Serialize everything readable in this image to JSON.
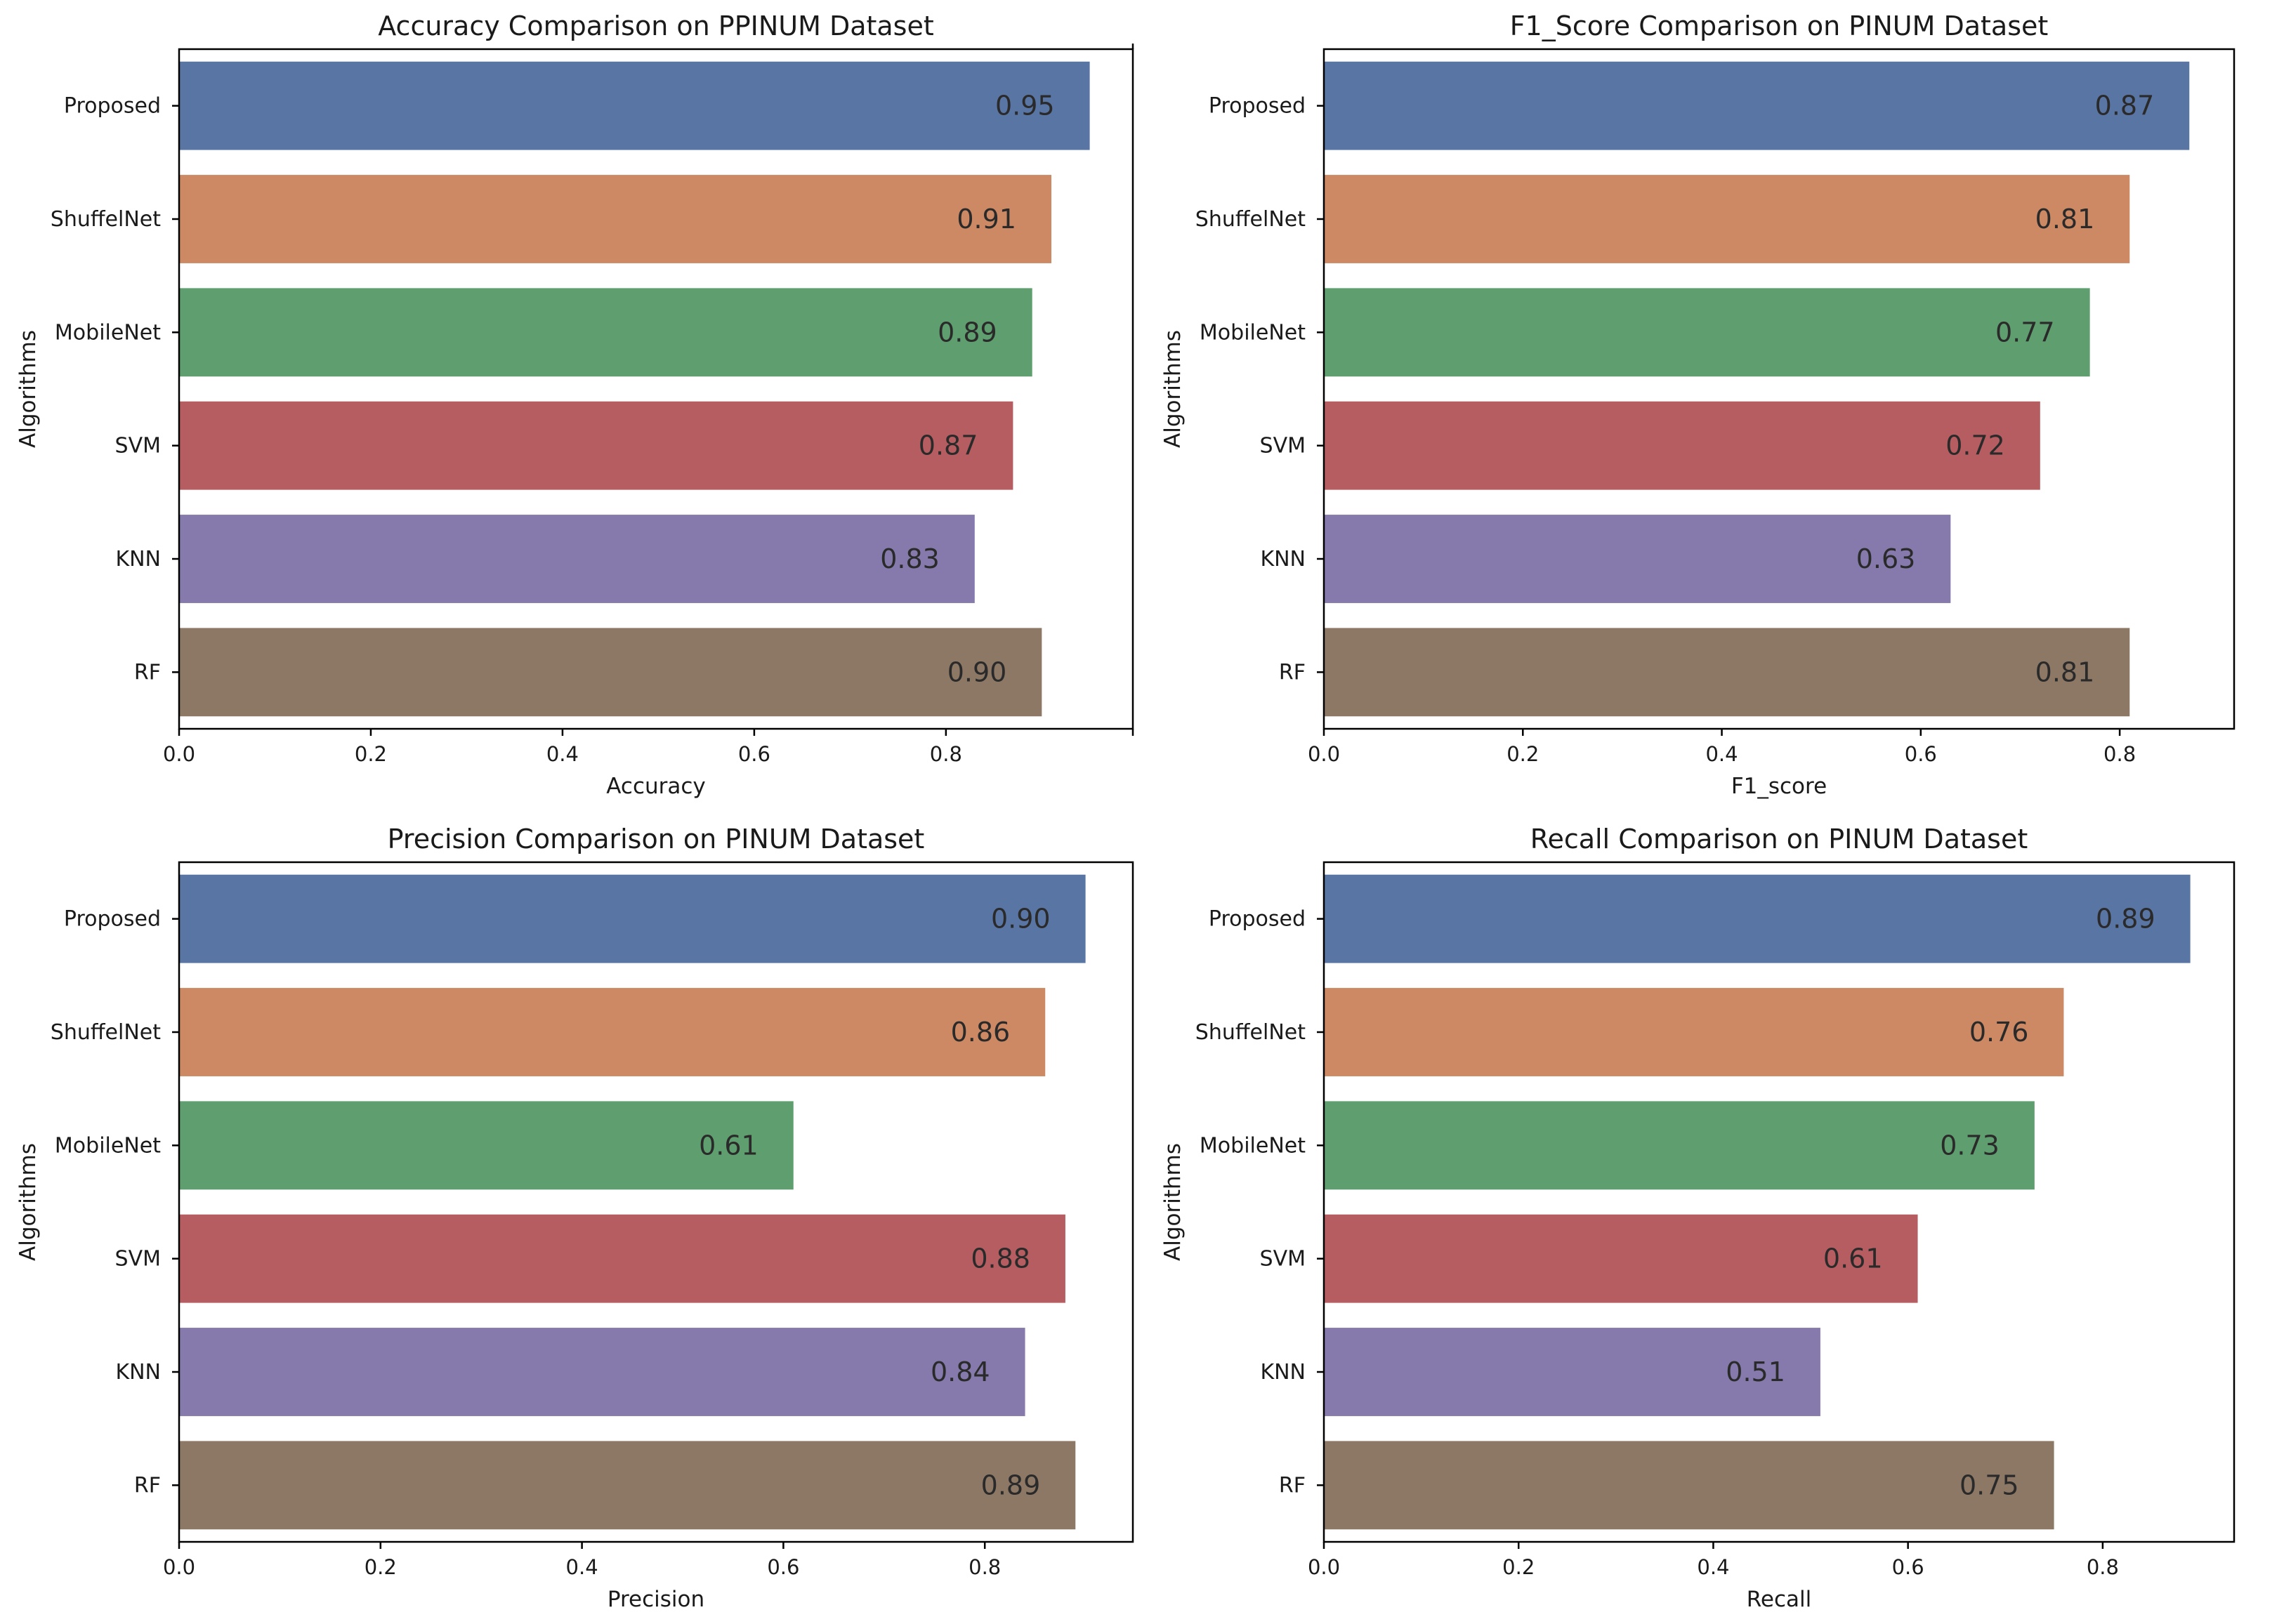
{
  "colors": {
    "Proposed": "#5975a4",
    "ShuffelNet": "#cc8963",
    "MobileNet": "#5f9e6e",
    "SVM": "#b55d60",
    "KNN": "#857aab",
    "RF": "#8d7866"
  },
  "chart_data": [
    {
      "type": "bar",
      "orientation": "horizontal",
      "title": "Accuracy Comparison on PPINUM Dataset",
      "xlabel": "Accuracy",
      "ylabel": "Algorithms",
      "categories": [
        "Proposed",
        "ShuffelNet",
        "MobileNet",
        "SVM",
        "KNN",
        "RF"
      ],
      "values": [
        0.95,
        0.91,
        0.89,
        0.87,
        0.83,
        0.9
      ],
      "value_labels": [
        "0.95",
        "0.91",
        "0.89",
        "0.87",
        "0.83",
        "0.90"
      ],
      "xlim": [
        0,
        0.995
      ],
      "xticks": [
        "0.0",
        "0.2",
        "0.4",
        "0.6",
        "0.8"
      ],
      "grid": false,
      "top_tick": true
    },
    {
      "type": "bar",
      "orientation": "horizontal",
      "title": "F1_Score Comparison on PINUM Dataset",
      "xlabel": "F1_score",
      "ylabel": "Algorithms",
      "categories": [
        "Proposed",
        "ShuffelNet",
        "MobileNet",
        "SVM",
        "KNN",
        "RF"
      ],
      "values": [
        0.87,
        0.81,
        0.77,
        0.72,
        0.63,
        0.81
      ],
      "value_labels": [
        "0.87",
        "0.81",
        "0.77",
        "0.72",
        "0.63",
        "0.81"
      ],
      "xlim": [
        0,
        0.915
      ],
      "xticks": [
        "0.0",
        "0.2",
        "0.4",
        "0.6",
        "0.8"
      ],
      "grid": false
    },
    {
      "type": "bar",
      "orientation": "horizontal",
      "title": "Precision Comparison on PINUM Dataset",
      "xlabel": "Precision",
      "ylabel": "Algorithms",
      "categories": [
        "Proposed",
        "ShuffelNet",
        "MobileNet",
        "SVM",
        "KNN",
        "RF"
      ],
      "values": [
        0.9,
        0.86,
        0.61,
        0.88,
        0.84,
        0.89
      ],
      "value_labels": [
        "0.90",
        "0.86",
        "0.61",
        "0.88",
        "0.84",
        "0.89"
      ],
      "xlim": [
        0,
        0.947
      ],
      "xticks": [
        "0.0",
        "0.2",
        "0.4",
        "0.6",
        "0.8"
      ],
      "grid": false
    },
    {
      "type": "bar",
      "orientation": "horizontal",
      "title": "Recall Comparison on PINUM Dataset",
      "xlabel": "Recall",
      "ylabel": "Algorithms",
      "categories": [
        "Proposed",
        "ShuffelNet",
        "MobileNet",
        "SVM",
        "KNN",
        "RF"
      ],
      "values": [
        0.89,
        0.76,
        0.73,
        0.61,
        0.51,
        0.75
      ],
      "value_labels": [
        "0.89",
        "0.76",
        "0.73",
        "0.61",
        "0.51",
        "0.75"
      ],
      "xlim": [
        0,
        0.935
      ],
      "xticks": [
        "0.0",
        "0.2",
        "0.4",
        "0.6",
        "0.8"
      ],
      "grid": false
    }
  ]
}
